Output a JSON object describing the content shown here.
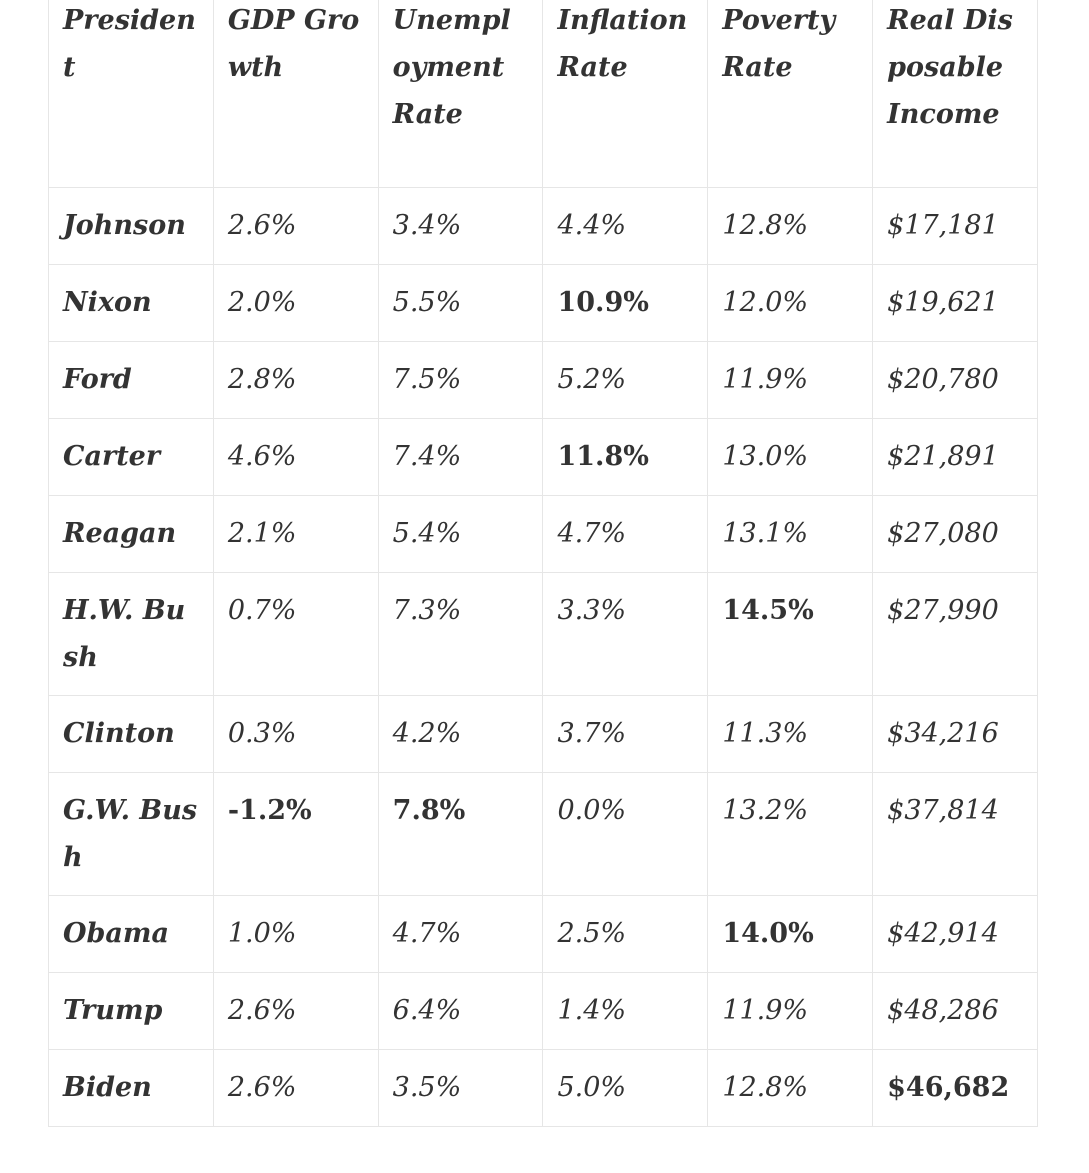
{
  "table": {
    "header": [
      "President",
      "GDP Growth",
      "Unemployment Rate",
      "Inflation Rate",
      "Poverty Rate",
      "Real Disposable Income"
    ],
    "rows": [
      [
        "Johnson",
        "2.6%",
        "3.4%",
        "4.4%",
        "12.8%",
        "$17,181"
      ],
      [
        "Nixon",
        "2.0%",
        "5.5%",
        "10.9%",
        "12.0%",
        "$19,621"
      ],
      [
        "Ford",
        "2.8%",
        "7.5%",
        "5.2%",
        "11.9%",
        "$20,780"
      ],
      [
        "Carter",
        "4.6%",
        "7.4%",
        "11.8%",
        "13.0%",
        "$21,891"
      ],
      [
        "Reagan",
        "2.1%",
        "5.4%",
        "4.7%",
        "13.1%",
        "$27,080"
      ],
      [
        "H.W. Bush",
        "0.7%",
        "7.3%",
        "3.3%",
        "14.5%",
        "$27,990"
      ],
      [
        "Clinton",
        "0.3%",
        "4.2%",
        "3.7%",
        "11.3%",
        "$34,216"
      ],
      [
        "G.W. Bush",
        "-1.2%",
        "7.8%",
        "0.0%",
        "13.2%",
        "$37,814"
      ],
      [
        "Obama",
        "1.0%",
        "4.7%",
        "2.5%",
        "14.0%",
        "$42,914"
      ],
      [
        "Trump",
        "2.6%",
        "6.4%",
        "1.4%",
        "11.9%",
        "$48,286"
      ],
      [
        "Biden",
        "2.6%",
        "3.5%",
        "5.0%",
        "12.8%",
        "$46,682"
      ]
    ],
    "bold": [
      [
        1,
        3
      ],
      [
        3,
        3
      ],
      [
        5,
        4
      ],
      [
        7,
        1
      ],
      [
        7,
        2
      ],
      [
        8,
        4
      ],
      [
        10,
        5
      ]
    ]
  }
}
